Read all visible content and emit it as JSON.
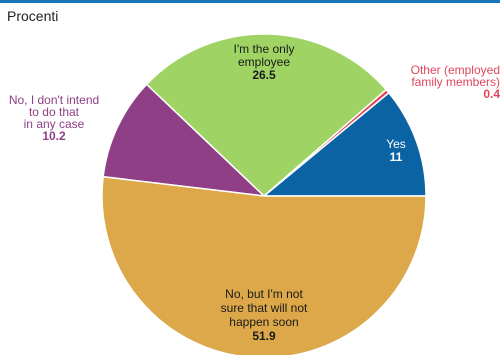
{
  "chart_data": {
    "type": "pie",
    "unit_label": "Procenti",
    "start_angle_deg": 0,
    "direction": "counterclockwise",
    "slices": [
      {
        "label_lines": [
          "Yes"
        ],
        "value": 11,
        "value_text": "11",
        "color": "#0b63a3",
        "label_color": "#ffffff",
        "value_color": "#ffffff"
      },
      {
        "label_lines": [
          "Other (employed",
          "family members)"
        ],
        "value": 0.4,
        "value_text": "0.4",
        "color": "#e0465a",
        "label_color": "#e0465a",
        "value_color": "#e0465a"
      },
      {
        "label_lines": [
          "I'm the only",
          "employee"
        ],
        "value": 26.5,
        "value_text": "26.5",
        "color": "#9fd464",
        "label_color": "#1a1a1a",
        "value_color": "#1a1a1a"
      },
      {
        "label_lines": [
          "No, I don't intend",
          "to do that",
          "in any case"
        ],
        "value": 10.2,
        "value_text": "10.2",
        "color": "#8e3f86",
        "label_color": "#8e3f86",
        "value_color": "#8e3f86"
      },
      {
        "label_lines": [
          "No, but I'm not",
          "sure that will not",
          "happen soon"
        ],
        "value": 51.9,
        "value_text": "51.9",
        "color": "#dca849",
        "label_color": "#1a1a1a",
        "value_color": "#1a1a1a"
      }
    ]
  }
}
